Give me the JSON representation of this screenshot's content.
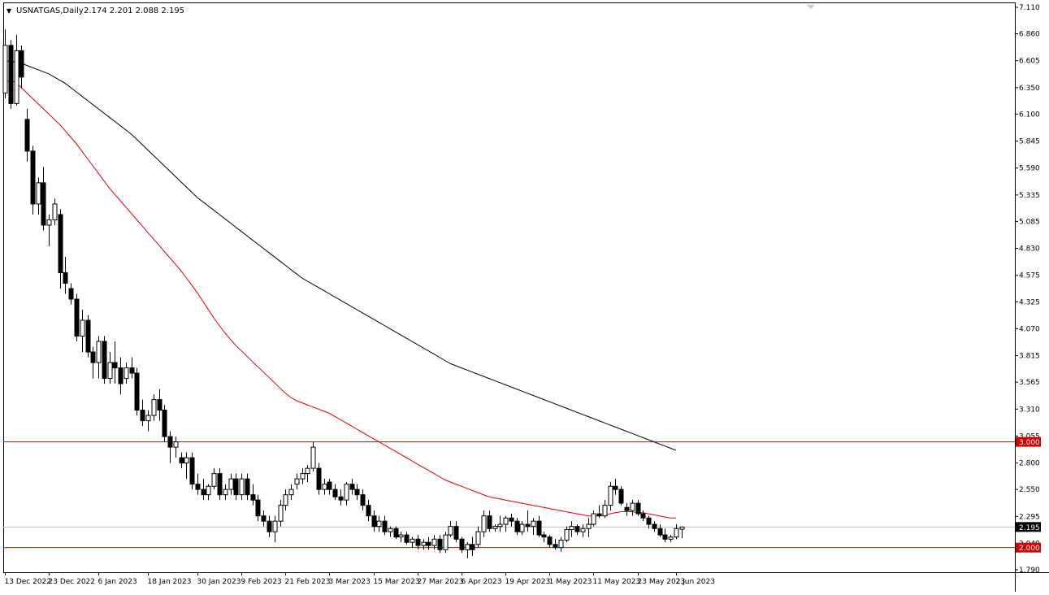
{
  "header": {
    "menu_glyph": "▼",
    "symbol": "USNATGAS,Daily",
    "ohlc": "2.174 2.201 2.088 2.195"
  },
  "colors": {
    "background": "#ffffff",
    "border": "#000000",
    "candle": "#000000",
    "ma_fast": "#e00000",
    "ma_slow": "#000000",
    "level_line": "#d00000",
    "level_label_bg": "#d00000",
    "price_label_bg": "#000000"
  },
  "chart_data": {
    "type": "candlestick",
    "symbol": "USNATGAS",
    "timeframe": "Daily",
    "ylim": [
      1.79,
      7.11
    ],
    "y_ticks": [
      "7.110",
      "6.860",
      "6.605",
      "6.350",
      "6.100",
      "5.845",
      "5.590",
      "5.335",
      "5.085",
      "4.830",
      "4.575",
      "4.325",
      "4.070",
      "3.815",
      "3.565",
      "3.310",
      "3.055",
      "2.800",
      "2.550",
      "2.295",
      "2.040",
      "1.790"
    ],
    "x_ticks": [
      {
        "label": "13 Dec 2022",
        "index": 0
      },
      {
        "label": "23 Dec 2022",
        "index": 8
      },
      {
        "label": "6 Jan 2023",
        "index": 17
      },
      {
        "label": "18 Jan 2023",
        "index": 26
      },
      {
        "label": "30 Jan 2023",
        "index": 35
      },
      {
        "label": "9 Feb 2023",
        "index": 43
      },
      {
        "label": "21 Feb 2023",
        "index": 51
      },
      {
        "label": "3 Mar 2023",
        "index": 59
      },
      {
        "label": "15 Mar 2023",
        "index": 67
      },
      {
        "label": "27 Mar 2023",
        "index": 75
      },
      {
        "label": "6 Apr 2023",
        "index": 83
      },
      {
        "label": "19 Apr 2023",
        "index": 91
      },
      {
        "label": "1 May 2023",
        "index": 99
      },
      {
        "label": "11 May 2023",
        "index": 107
      },
      {
        "label": "23 May 2023",
        "index": 115
      },
      {
        "label": "2 Jun 2023",
        "index": 122
      }
    ],
    "horizontal_levels": [
      {
        "label": "3.000",
        "value": 3.0
      },
      {
        "label": "2.000",
        "value": 2.0
      }
    ],
    "current_price": {
      "label": "2.195",
      "value": 2.195
    },
    "ma_fast": [
      6.4,
      6.42,
      6.4,
      6.35,
      6.3,
      6.25,
      6.2,
      6.15,
      6.1,
      6.05,
      6.0,
      5.94,
      5.88,
      5.82,
      5.75,
      5.68,
      5.61,
      5.54,
      5.47,
      5.4,
      5.34,
      5.28,
      5.22,
      5.16,
      5.1,
      5.04,
      4.98,
      4.92,
      4.86,
      4.8,
      4.74,
      4.68,
      4.62,
      4.55,
      4.48,
      4.41,
      4.33,
      4.25,
      4.17,
      4.1,
      4.03,
      3.97,
      3.91,
      3.86,
      3.81,
      3.76,
      3.71,
      3.66,
      3.61,
      3.56,
      3.51,
      3.46,
      3.42,
      3.39,
      3.37,
      3.35,
      3.33,
      3.31,
      3.29,
      3.27,
      3.24,
      3.21,
      3.18,
      3.15,
      3.12,
      3.09,
      3.06,
      3.03,
      3.0,
      2.97,
      2.94,
      2.91,
      2.88,
      2.85,
      2.82,
      2.79,
      2.76,
      2.73,
      2.7,
      2.67,
      2.64,
      2.62,
      2.6,
      2.58,
      2.56,
      2.54,
      2.52,
      2.5,
      2.48,
      2.47,
      2.46,
      2.45,
      2.44,
      2.43,
      2.42,
      2.41,
      2.4,
      2.39,
      2.38,
      2.37,
      2.36,
      2.35,
      2.34,
      2.33,
      2.32,
      2.31,
      2.3,
      2.3,
      2.3,
      2.31,
      2.32,
      2.33,
      2.34,
      2.34,
      2.34,
      2.33,
      2.33,
      2.32,
      2.31,
      2.3,
      2.29,
      2.28,
      2.28
    ],
    "ma_slow": [
      6.6,
      6.6,
      6.59,
      6.58,
      6.56,
      6.54,
      6.52,
      6.5,
      6.48,
      6.45,
      6.42,
      6.39,
      6.35,
      6.31,
      6.27,
      6.23,
      6.19,
      6.15,
      6.11,
      6.07,
      6.03,
      5.99,
      5.95,
      5.91,
      5.86,
      5.81,
      5.76,
      5.71,
      5.66,
      5.61,
      5.56,
      5.51,
      5.46,
      5.41,
      5.36,
      5.31,
      5.27,
      5.23,
      5.19,
      5.15,
      5.11,
      5.07,
      5.03,
      4.99,
      4.95,
      4.91,
      4.87,
      4.83,
      4.79,
      4.75,
      4.71,
      4.67,
      4.63,
      4.59,
      4.55,
      4.52,
      4.49,
      4.46,
      4.43,
      4.4,
      4.37,
      4.34,
      4.31,
      4.28,
      4.25,
      4.22,
      4.19,
      4.16,
      4.13,
      4.1,
      4.07,
      4.04,
      4.01,
      3.98,
      3.95,
      3.92,
      3.89,
      3.86,
      3.83,
      3.8,
      3.77,
      3.74,
      3.72,
      3.7,
      3.68,
      3.66,
      3.64,
      3.62,
      3.6,
      3.58,
      3.56,
      3.54,
      3.52,
      3.5,
      3.48,
      3.46,
      3.44,
      3.42,
      3.4,
      3.38,
      3.36,
      3.34,
      3.32,
      3.3,
      3.28,
      3.26,
      3.24,
      3.22,
      3.2,
      3.18,
      3.16,
      3.14,
      3.12,
      3.1,
      3.08,
      3.06,
      3.04,
      3.02,
      3.0,
      2.98,
      2.96,
      2.94,
      2.92
    ],
    "candles": [
      {
        "o": 6.3,
        "h": 6.9,
        "l": 6.25,
        "c": 6.75
      },
      {
        "o": 6.75,
        "h": 6.8,
        "l": 6.15,
        "c": 6.2
      },
      {
        "o": 6.2,
        "h": 6.85,
        "l": 6.18,
        "c": 6.7
      },
      {
        "o": 6.7,
        "h": 6.75,
        "l": 6.35,
        "c": 6.45
      },
      {
        "o": 6.05,
        "h": 6.15,
        "l": 5.65,
        "c": 5.75
      },
      {
        "o": 5.75,
        "h": 5.8,
        "l": 5.15,
        "c": 5.25
      },
      {
        "o": 5.25,
        "h": 5.5,
        "l": 5.15,
        "c": 5.45
      },
      {
        "o": 5.45,
        "h": 5.6,
        "l": 5.0,
        "c": 5.05
      },
      {
        "o": 5.05,
        "h": 5.15,
        "l": 4.85,
        "c": 5.1
      },
      {
        "o": 5.1,
        "h": 5.3,
        "l": 5.05,
        "c": 5.25
      },
      {
        "o": 5.15,
        "h": 5.2,
        "l": 4.45,
        "c": 4.6
      },
      {
        "o": 4.6,
        "h": 4.75,
        "l": 4.4,
        "c": 4.5
      },
      {
        "o": 4.45,
        "h": 4.5,
        "l": 4.3,
        "c": 4.35
      },
      {
        "o": 4.35,
        "h": 4.4,
        "l": 3.95,
        "c": 4.0
      },
      {
        "o": 4.0,
        "h": 4.25,
        "l": 3.85,
        "c": 4.15
      },
      {
        "o": 4.15,
        "h": 4.2,
        "l": 3.8,
        "c": 3.85
      },
      {
        "o": 3.85,
        "h": 3.9,
        "l": 3.6,
        "c": 3.75
      },
      {
        "o": 3.75,
        "h": 4.0,
        "l": 3.6,
        "c": 3.95
      },
      {
        "o": 3.95,
        "h": 4.0,
        "l": 3.55,
        "c": 3.6
      },
      {
        "o": 3.6,
        "h": 3.85,
        "l": 3.55,
        "c": 3.75
      },
      {
        "o": 3.75,
        "h": 3.95,
        "l": 3.55,
        "c": 3.7
      },
      {
        "o": 3.7,
        "h": 3.8,
        "l": 3.45,
        "c": 3.55
      },
      {
        "o": 3.6,
        "h": 3.75,
        "l": 3.55,
        "c": 3.7
      },
      {
        "o": 3.7,
        "h": 3.8,
        "l": 3.6,
        "c": 3.65
      },
      {
        "o": 3.65,
        "h": 3.7,
        "l": 3.25,
        "c": 3.3
      },
      {
        "o": 3.3,
        "h": 3.4,
        "l": 3.15,
        "c": 3.2
      },
      {
        "o": 3.2,
        "h": 3.3,
        "l": 3.1,
        "c": 3.25
      },
      {
        "o": 3.25,
        "h": 3.45,
        "l": 3.2,
        "c": 3.4
      },
      {
        "o": 3.4,
        "h": 3.5,
        "l": 3.2,
        "c": 3.3
      },
      {
        "o": 3.3,
        "h": 3.35,
        "l": 3.0,
        "c": 3.05
      },
      {
        "o": 3.05,
        "h": 3.1,
        "l": 2.8,
        "c": 2.95
      },
      {
        "o": 2.95,
        "h": 3.05,
        "l": 2.85,
        "c": 3.0
      },
      {
        "o": 2.85,
        "h": 2.9,
        "l": 2.75,
        "c": 2.8
      },
      {
        "o": 2.8,
        "h": 2.9,
        "l": 2.65,
        "c": 2.85
      },
      {
        "o": 2.85,
        "h": 2.9,
        "l": 2.55,
        "c": 2.6
      },
      {
        "o": 2.6,
        "h": 2.7,
        "l": 2.5,
        "c": 2.55
      },
      {
        "o": 2.55,
        "h": 2.65,
        "l": 2.45,
        "c": 2.5
      },
      {
        "o": 2.5,
        "h": 2.6,
        "l": 2.45,
        "c": 2.58
      },
      {
        "o": 2.58,
        "h": 2.75,
        "l": 2.55,
        "c": 2.7
      },
      {
        "o": 2.7,
        "h": 2.75,
        "l": 2.45,
        "c": 2.5
      },
      {
        "o": 2.5,
        "h": 2.6,
        "l": 2.45,
        "c": 2.55
      },
      {
        "o": 2.55,
        "h": 2.7,
        "l": 2.5,
        "c": 2.65
      },
      {
        "o": 2.65,
        "h": 2.7,
        "l": 2.45,
        "c": 2.5
      },
      {
        "o": 2.5,
        "h": 2.7,
        "l": 2.45,
        "c": 2.65
      },
      {
        "o": 2.65,
        "h": 2.7,
        "l": 2.45,
        "c": 2.5
      },
      {
        "o": 2.5,
        "h": 2.6,
        "l": 2.4,
        "c": 2.45
      },
      {
        "o": 2.45,
        "h": 2.5,
        "l": 2.25,
        "c": 2.3
      },
      {
        "o": 2.3,
        "h": 2.35,
        "l": 2.2,
        "c": 2.25
      },
      {
        "o": 2.25,
        "h": 2.3,
        "l": 2.1,
        "c": 2.15
      },
      {
        "o": 2.15,
        "h": 2.3,
        "l": 2.05,
        "c": 2.25
      },
      {
        "o": 2.25,
        "h": 2.45,
        "l": 2.2,
        "c": 2.4
      },
      {
        "o": 2.4,
        "h": 2.55,
        "l": 2.35,
        "c": 2.5
      },
      {
        "o": 2.5,
        "h": 2.6,
        "l": 2.45,
        "c": 2.55
      },
      {
        "o": 2.6,
        "h": 2.7,
        "l": 2.55,
        "c": 2.65
      },
      {
        "o": 2.65,
        "h": 2.75,
        "l": 2.6,
        "c": 2.7
      },
      {
        "o": 2.7,
        "h": 2.78,
        "l": 2.62,
        "c": 2.75
      },
      {
        "o": 2.75,
        "h": 3.0,
        "l": 2.72,
        "c": 2.95
      },
      {
        "o": 2.75,
        "h": 2.8,
        "l": 2.5,
        "c": 2.55
      },
      {
        "o": 2.55,
        "h": 2.65,
        "l": 2.5,
        "c": 2.6
      },
      {
        "o": 2.62,
        "h": 2.65,
        "l": 2.5,
        "c": 2.55
      },
      {
        "o": 2.55,
        "h": 2.6,
        "l": 2.45,
        "c": 2.48
      },
      {
        "o": 2.48,
        "h": 2.55,
        "l": 2.4,
        "c": 2.45
      },
      {
        "o": 2.45,
        "h": 2.62,
        "l": 2.4,
        "c": 2.6
      },
      {
        "o": 2.6,
        "h": 2.65,
        "l": 2.5,
        "c": 2.55
      },
      {
        "o": 2.55,
        "h": 2.6,
        "l": 2.45,
        "c": 2.5
      },
      {
        "o": 2.5,
        "h": 2.55,
        "l": 2.35,
        "c": 2.4
      },
      {
        "o": 2.4,
        "h": 2.45,
        "l": 2.25,
        "c": 2.3
      },
      {
        "o": 2.3,
        "h": 2.35,
        "l": 2.15,
        "c": 2.2
      },
      {
        "o": 2.2,
        "h": 2.3,
        "l": 2.15,
        "c": 2.25
      },
      {
        "o": 2.25,
        "h": 2.3,
        "l": 2.12,
        "c": 2.15
      },
      {
        "o": 2.15,
        "h": 2.2,
        "l": 2.1,
        "c": 2.18
      },
      {
        "o": 2.18,
        "h": 2.2,
        "l": 2.08,
        "c": 2.1
      },
      {
        "o": 2.1,
        "h": 2.15,
        "l": 2.05,
        "c": 2.12
      },
      {
        "o": 2.12,
        "h": 2.15,
        "l": 2.03,
        "c": 2.05
      },
      {
        "o": 2.05,
        "h": 2.1,
        "l": 2.0,
        "c": 2.08
      },
      {
        "o": 2.08,
        "h": 2.12,
        "l": 1.98,
        "c": 2.02
      },
      {
        "o": 2.02,
        "h": 2.08,
        "l": 1.98,
        "c": 2.05
      },
      {
        "o": 2.05,
        "h": 2.1,
        "l": 1.98,
        "c": 2.02
      },
      {
        "o": 2.02,
        "h": 2.12,
        "l": 1.98,
        "c": 2.08
      },
      {
        "o": 2.08,
        "h": 2.12,
        "l": 1.95,
        "c": 1.98
      },
      {
        "o": 1.98,
        "h": 2.15,
        "l": 1.95,
        "c": 2.12
      },
      {
        "o": 2.12,
        "h": 2.25,
        "l": 2.1,
        "c": 2.2
      },
      {
        "o": 2.2,
        "h": 2.25,
        "l": 2.05,
        "c": 2.08
      },
      {
        "o": 2.08,
        "h": 2.1,
        "l": 1.95,
        "c": 1.98
      },
      {
        "o": 1.98,
        "h": 2.05,
        "l": 1.9,
        "c": 2.03
      },
      {
        "o": 2.03,
        "h": 2.1,
        "l": 1.92,
        "c": 1.98
      },
      {
        "o": 2.03,
        "h": 2.2,
        "l": 2.0,
        "c": 2.15
      },
      {
        "o": 2.15,
        "h": 2.35,
        "l": 2.1,
        "c": 2.3
      },
      {
        "o": 2.3,
        "h": 2.35,
        "l": 2.15,
        "c": 2.18
      },
      {
        "o": 2.18,
        "h": 2.22,
        "l": 2.15,
        "c": 2.2
      },
      {
        "o": 2.2,
        "h": 2.3,
        "l": 2.15,
        "c": 2.22
      },
      {
        "o": 2.22,
        "h": 2.3,
        "l": 2.15,
        "c": 2.28
      },
      {
        "o": 2.28,
        "h": 2.32,
        "l": 2.2,
        "c": 2.25
      },
      {
        "o": 2.25,
        "h": 2.28,
        "l": 2.12,
        "c": 2.15
      },
      {
        "o": 2.15,
        "h": 2.25,
        "l": 2.12,
        "c": 2.22
      },
      {
        "o": 2.22,
        "h": 2.35,
        "l": 2.15,
        "c": 2.2
      },
      {
        "o": 2.2,
        "h": 2.28,
        "l": 2.12,
        "c": 2.25
      },
      {
        "o": 2.25,
        "h": 2.3,
        "l": 2.1,
        "c": 2.12
      },
      {
        "o": 2.12,
        "h": 2.15,
        "l": 2.05,
        "c": 2.1
      },
      {
        "o": 2.1,
        "h": 2.12,
        "l": 2.0,
        "c": 2.03
      },
      {
        "o": 2.03,
        "h": 2.08,
        "l": 1.98,
        "c": 2.0
      },
      {
        "o": 2.0,
        "h": 2.1,
        "l": 1.96,
        "c": 2.07
      },
      {
        "o": 2.07,
        "h": 2.2,
        "l": 2.05,
        "c": 2.17
      },
      {
        "o": 2.17,
        "h": 2.25,
        "l": 2.1,
        "c": 2.2
      },
      {
        "o": 2.2,
        "h": 2.22,
        "l": 2.12,
        "c": 2.15
      },
      {
        "o": 2.15,
        "h": 2.22,
        "l": 2.1,
        "c": 2.18
      },
      {
        "o": 2.18,
        "h": 2.28,
        "l": 2.1,
        "c": 2.22
      },
      {
        "o": 2.22,
        "h": 2.35,
        "l": 2.2,
        "c": 2.32
      },
      {
        "o": 2.32,
        "h": 2.4,
        "l": 2.28,
        "c": 2.3
      },
      {
        "o": 2.3,
        "h": 2.45,
        "l": 2.28,
        "c": 2.4
      },
      {
        "o": 2.4,
        "h": 2.62,
        "l": 2.35,
        "c": 2.58
      },
      {
        "o": 2.58,
        "h": 2.65,
        "l": 2.5,
        "c": 2.55
      },
      {
        "o": 2.55,
        "h": 2.58,
        "l": 2.4,
        "c": 2.42
      },
      {
        "o": 2.38,
        "h": 2.42,
        "l": 2.3,
        "c": 2.35
      },
      {
        "o": 2.35,
        "h": 2.45,
        "l": 2.3,
        "c": 2.42
      },
      {
        "o": 2.42,
        "h": 2.45,
        "l": 2.3,
        "c": 2.32
      },
      {
        "o": 2.32,
        "h": 2.35,
        "l": 2.25,
        "c": 2.28
      },
      {
        "o": 2.28,
        "h": 2.3,
        "l": 2.18,
        "c": 2.22
      },
      {
        "o": 2.22,
        "h": 2.25,
        "l": 2.15,
        "c": 2.18
      },
      {
        "o": 2.18,
        "h": 2.22,
        "l": 2.1,
        "c": 2.12
      },
      {
        "o": 2.12,
        "h": 2.18,
        "l": 2.05,
        "c": 2.08
      },
      {
        "o": 2.08,
        "h": 2.12,
        "l": 2.05,
        "c": 2.1
      },
      {
        "o": 2.1,
        "h": 2.22,
        "l": 2.08,
        "c": 2.18
      },
      {
        "o": 2.174,
        "h": 2.201,
        "l": 2.088,
        "c": 2.195
      }
    ]
  }
}
